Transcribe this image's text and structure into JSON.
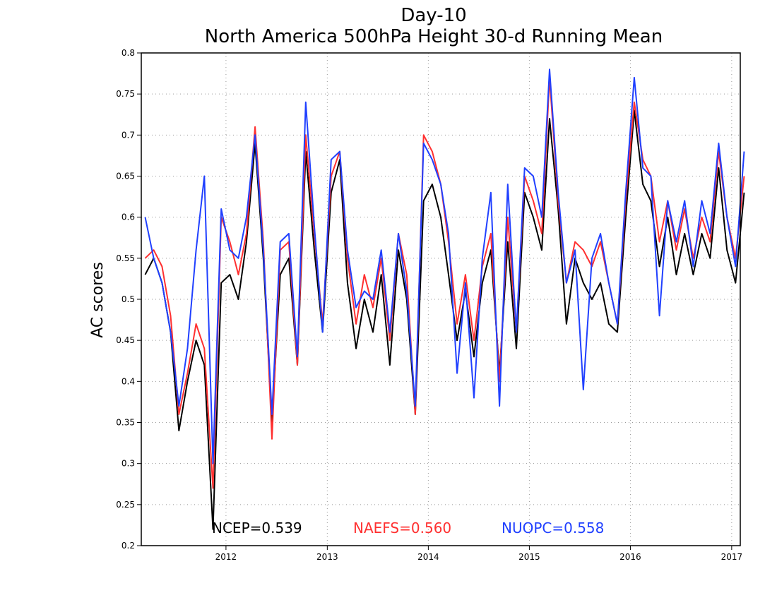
{
  "chart_data": {
    "type": "line",
    "title": [
      "Day-10",
      "North America 500hPa Height 30-d Running Mean"
    ],
    "ylabel": "AC scores",
    "xlabel": "",
    "ylim": [
      0.2,
      0.8
    ],
    "yticks": [
      0.2,
      0.25,
      0.3,
      0.35,
      0.4,
      0.45,
      0.5,
      0.55,
      0.6,
      0.65,
      0.7,
      0.75,
      0.8
    ],
    "xlim": [
      "2011-03-01",
      "2017-02-01"
    ],
    "xticks": [
      "2012",
      "2013",
      "2014",
      "2015",
      "2016",
      "2017"
    ],
    "grid": true,
    "legend_placement": "bottom inside plot",
    "series": [
      {
        "name": "NCEP",
        "legend": "NCEP=0.539",
        "color": "#000000",
        "x": [
          "2011-03",
          "2011-04",
          "2011-05",
          "2011-06",
          "2011-07",
          "2011-08",
          "2011-09",
          "2011-10",
          "2011-11",
          "2011-12",
          "2012-01",
          "2012-02",
          "2012-03",
          "2012-04",
          "2012-05",
          "2012-06",
          "2012-07",
          "2012-08",
          "2012-09",
          "2012-10",
          "2012-11",
          "2012-12",
          "2013-01",
          "2013-02",
          "2013-03",
          "2013-04",
          "2013-05",
          "2013-06",
          "2013-07",
          "2013-08",
          "2013-09",
          "2013-10",
          "2013-11",
          "2013-12",
          "2014-01",
          "2014-02",
          "2014-03",
          "2014-04",
          "2014-05",
          "2014-06",
          "2014-07",
          "2014-08",
          "2014-09",
          "2014-10",
          "2014-11",
          "2014-12",
          "2015-01",
          "2015-02",
          "2015-03",
          "2015-04",
          "2015-05",
          "2015-06",
          "2015-07",
          "2015-08",
          "2015-09",
          "2015-10",
          "2015-11",
          "2015-12",
          "2016-01",
          "2016-02",
          "2016-03",
          "2016-04",
          "2016-05",
          "2016-06",
          "2016-07",
          "2016-08",
          "2016-09",
          "2016-10",
          "2016-11",
          "2016-12",
          "2017-01",
          "2017-02"
        ],
        "values": [
          0.53,
          0.55,
          0.52,
          0.46,
          0.34,
          0.4,
          0.45,
          0.42,
          0.22,
          0.52,
          0.53,
          0.5,
          0.57,
          0.69,
          0.55,
          0.35,
          0.53,
          0.55,
          0.42,
          0.68,
          0.56,
          0.46,
          0.63,
          0.67,
          0.52,
          0.44,
          0.5,
          0.46,
          0.53,
          0.42,
          0.56,
          0.5,
          0.36,
          0.62,
          0.64,
          0.6,
          0.53,
          0.45,
          0.51,
          0.43,
          0.52,
          0.56,
          0.41,
          0.57,
          0.44,
          0.63,
          0.6,
          0.56,
          0.72,
          0.61,
          0.47,
          0.55,
          0.52,
          0.5,
          0.52,
          0.47,
          0.46,
          0.6,
          0.73,
          0.64,
          0.62,
          0.54,
          0.6,
          0.53,
          0.58,
          0.53,
          0.58,
          0.55,
          0.66,
          0.56,
          0.52,
          0.63
        ]
      },
      {
        "name": "NAEFS",
        "legend": "NAEFS=0.560",
        "color": "#ff3030",
        "x": [
          "2011-03",
          "2011-04",
          "2011-05",
          "2011-06",
          "2011-07",
          "2011-08",
          "2011-09",
          "2011-10",
          "2011-11",
          "2011-12",
          "2012-01",
          "2012-02",
          "2012-03",
          "2012-04",
          "2012-05",
          "2012-06",
          "2012-07",
          "2012-08",
          "2012-09",
          "2012-10",
          "2012-11",
          "2012-12",
          "2013-01",
          "2013-02",
          "2013-03",
          "2013-04",
          "2013-05",
          "2013-06",
          "2013-07",
          "2013-08",
          "2013-09",
          "2013-10",
          "2013-11",
          "2013-12",
          "2014-01",
          "2014-02",
          "2014-03",
          "2014-04",
          "2014-05",
          "2014-06",
          "2014-07",
          "2014-08",
          "2014-09",
          "2014-10",
          "2014-11",
          "2014-12",
          "2015-01",
          "2015-02",
          "2015-03",
          "2015-04",
          "2015-05",
          "2015-06",
          "2015-07",
          "2015-08",
          "2015-09",
          "2015-10",
          "2015-11",
          "2015-12",
          "2016-01",
          "2016-02",
          "2016-03",
          "2016-04",
          "2016-05",
          "2016-06",
          "2016-07",
          "2016-08",
          "2016-09",
          "2016-10",
          "2016-11",
          "2016-12",
          "2017-01",
          "2017-02"
        ],
        "values": [
          0.55,
          0.56,
          0.54,
          0.48,
          0.36,
          0.41,
          0.47,
          0.44,
          0.27,
          0.6,
          0.57,
          0.53,
          0.58,
          0.71,
          0.57,
          0.33,
          0.56,
          0.57,
          0.42,
          0.7,
          0.58,
          0.47,
          0.65,
          0.68,
          0.55,
          0.47,
          0.53,
          0.49,
          0.55,
          0.45,
          0.58,
          0.53,
          0.36,
          0.7,
          0.68,
          0.64,
          0.57,
          0.47,
          0.53,
          0.45,
          0.54,
          0.58,
          0.4,
          0.6,
          0.46,
          0.65,
          0.62,
          0.58,
          0.77,
          0.62,
          0.52,
          0.57,
          0.56,
          0.54,
          0.57,
          0.52,
          0.47,
          0.62,
          0.74,
          0.67,
          0.65,
          0.57,
          0.62,
          0.56,
          0.61,
          0.55,
          0.6,
          0.57,
          0.68,
          0.6,
          0.55,
          0.65
        ]
      },
      {
        "name": "NUOPC",
        "legend": "NUOPC=0.558",
        "color": "#2040ff",
        "x": [
          "2011-03",
          "2011-04",
          "2011-05",
          "2011-06",
          "2011-07",
          "2011-08",
          "2011-09",
          "2011-10",
          "2011-11",
          "2011-12",
          "2012-01",
          "2012-02",
          "2012-03",
          "2012-04",
          "2012-05",
          "2012-06",
          "2012-07",
          "2012-08",
          "2012-09",
          "2012-10",
          "2012-11",
          "2012-12",
          "2013-01",
          "2013-02",
          "2013-03",
          "2013-04",
          "2013-05",
          "2013-06",
          "2013-07",
          "2013-08",
          "2013-09",
          "2013-10",
          "2013-11",
          "2013-12",
          "2014-01",
          "2014-02",
          "2014-03",
          "2014-04",
          "2014-05",
          "2014-06",
          "2014-07",
          "2014-08",
          "2014-09",
          "2014-10",
          "2014-11",
          "2014-12",
          "2015-01",
          "2015-02",
          "2015-03",
          "2015-04",
          "2015-05",
          "2015-06",
          "2015-07",
          "2015-08",
          "2015-09",
          "2015-10",
          "2015-11",
          "2015-12",
          "2016-01",
          "2016-02",
          "2016-03",
          "2016-04",
          "2016-05",
          "2016-06",
          "2016-07",
          "2016-08",
          "2016-09",
          "2016-10",
          "2016-11",
          "2016-12",
          "2017-01",
          "2017-02"
        ],
        "values": [
          0.6,
          0.55,
          0.52,
          0.46,
          0.37,
          0.44,
          0.56,
          0.65,
          0.3,
          0.61,
          0.56,
          0.55,
          0.6,
          0.7,
          0.56,
          0.36,
          0.57,
          0.58,
          0.43,
          0.74,
          0.59,
          0.46,
          0.67,
          0.68,
          0.56,
          0.49,
          0.51,
          0.5,
          0.56,
          0.46,
          0.58,
          0.51,
          0.37,
          0.69,
          0.67,
          0.64,
          0.58,
          0.41,
          0.52,
          0.38,
          0.55,
          0.63,
          0.37,
          0.64,
          0.46,
          0.66,
          0.65,
          0.6,
          0.78,
          0.63,
          0.52,
          0.56,
          0.39,
          0.55,
          0.58,
          0.52,
          0.47,
          0.63,
          0.77,
          0.66,
          0.65,
          0.48,
          0.62,
          0.57,
          0.62,
          0.54,
          0.62,
          0.58,
          0.69,
          0.6,
          0.54,
          0.68
        ]
      }
    ]
  }
}
